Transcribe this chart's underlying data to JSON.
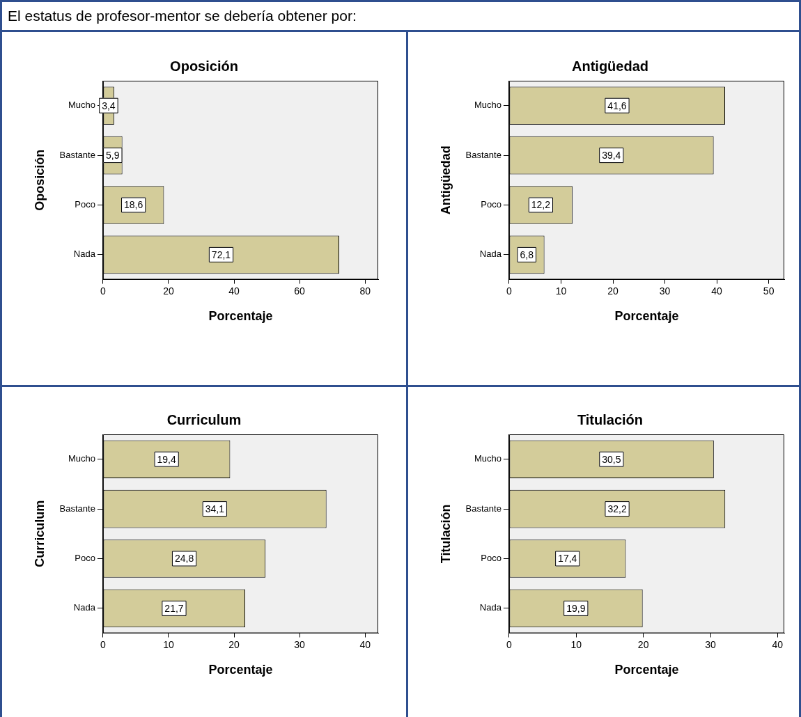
{
  "chart_data": [
    {
      "type": "bar",
      "orientation": "horizontal",
      "title": "Oposición",
      "xlabel": "Porcentaje",
      "ylabel": "Oposición",
      "annotations": [
        "El estatus de profesor-mentor se debería obtener por:"
      ],
      "categories": [
        "Mucho",
        "Bastante",
        "Poco",
        "Nada"
      ],
      "values": [
        3.4,
        5.9,
        18.6,
        72.1
      ],
      "value_labels": [
        "3,4",
        "5,9",
        "18,6",
        "72,1"
      ],
      "color": "#d3cc9a",
      "xlim": [
        0,
        84
      ],
      "xticks": [
        0,
        20,
        40,
        60,
        80
      ],
      "grid": false,
      "legend": false
    },
    {
      "type": "bar",
      "orientation": "horizontal",
      "title": "Antigüedad",
      "xlabel": "Porcentaje",
      "ylabel": "Antigüedad",
      "categories": [
        "Mucho",
        "Bastante",
        "Poco",
        "Nada"
      ],
      "values": [
        41.6,
        39.4,
        12.2,
        6.8
      ],
      "value_labels": [
        "41,6",
        "39,4",
        "12,2",
        "6,8"
      ],
      "color": "#d3cc9a",
      "xlim": [
        0,
        53
      ],
      "xticks": [
        0,
        10,
        20,
        30,
        40,
        50
      ],
      "grid": false,
      "legend": false
    },
    {
      "type": "bar",
      "orientation": "horizontal",
      "title": "Curriculum",
      "xlabel": "Porcentaje",
      "ylabel": "Curriculum",
      "categories": [
        "Mucho",
        "Bastante",
        "Poco",
        "Nada"
      ],
      "values": [
        19.4,
        34.1,
        24.8,
        21.7
      ],
      "value_labels": [
        "19,4",
        "34,1",
        "24,8",
        "21,7"
      ],
      "color": "#d3cc9a",
      "xlim": [
        0,
        42
      ],
      "xticks": [
        0,
        10,
        20,
        30,
        40
      ],
      "grid": false,
      "legend": false
    },
    {
      "type": "bar",
      "orientation": "horizontal",
      "title": "Titulación",
      "xlabel": "Porcentaje",
      "ylabel": "Titulación",
      "categories": [
        "Mucho",
        "Bastante",
        "Poco",
        "Nada"
      ],
      "values": [
        30.5,
        32.2,
        17.4,
        19.9
      ],
      "value_labels": [
        "30,5",
        "32,2",
        "17,4",
        "19,9"
      ],
      "color": "#d3cc9a",
      "xlim": [
        0,
        41
      ],
      "xticks": [
        0,
        10,
        20,
        30,
        40
      ],
      "grid": false,
      "legend": false
    }
  ]
}
